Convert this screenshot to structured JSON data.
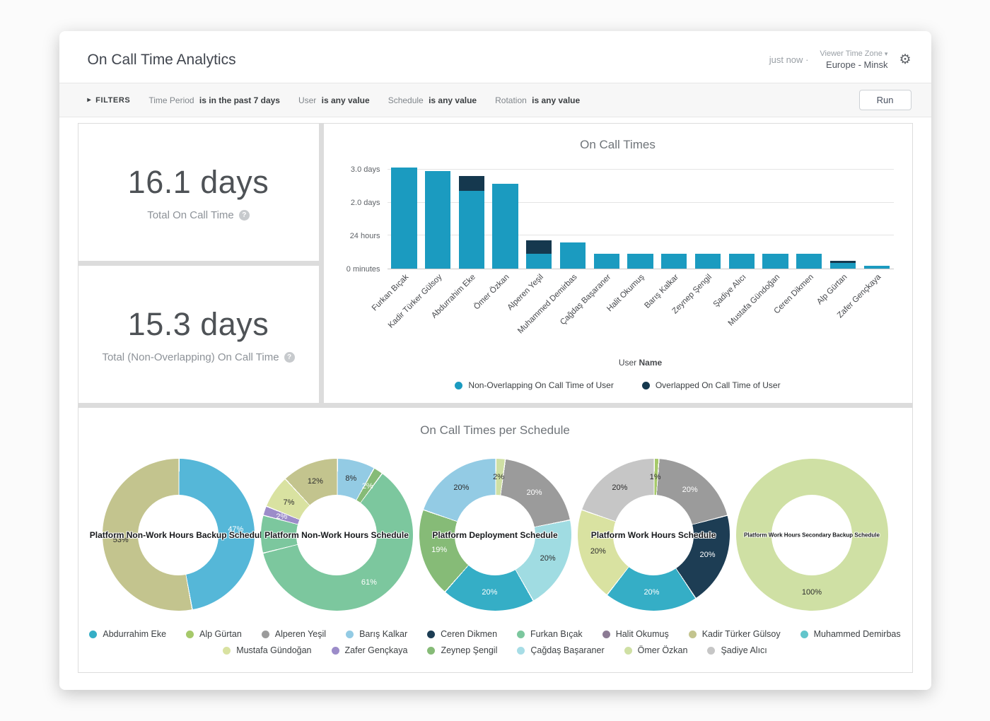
{
  "icons": {
    "gear": "⚙",
    "chevron_down": "▾",
    "info": "?",
    "filters_arrow": "▸"
  },
  "header": {
    "title": "On Call Time Analytics",
    "updated": "just now",
    "separator": "·",
    "timezone_label": "Viewer Time Zone",
    "timezone_value": "Europe - Minsk"
  },
  "filters": {
    "label": "FILTERS",
    "items": [
      {
        "field": "Time Period",
        "value": "is in the past 7 days"
      },
      {
        "field": "User",
        "value": "is any value"
      },
      {
        "field": "Schedule",
        "value": "is any value"
      },
      {
        "field": "Rotation",
        "value": "is any value"
      }
    ],
    "run_label": "Run"
  },
  "stats": [
    {
      "value": "16.1 days",
      "label": "Total On Call Time"
    },
    {
      "value": "15.3 days",
      "label": "Total (Non-Overlapping) On Call Time"
    }
  ],
  "chart_data": [
    {
      "type": "bar",
      "title": "On Call Times",
      "stacked": true,
      "xlabel": {
        "regular": "User",
        "bold": "Name"
      },
      "ymax_days": 3.2,
      "yticks": [
        {
          "label": "0 minutes",
          "value": 0
        },
        {
          "label": "24 hours",
          "value": 1
        },
        {
          "label": "2.0 days",
          "value": 2
        },
        {
          "label": "3.0 days",
          "value": 3
        }
      ],
      "categories": [
        "Furkan Bıçak",
        "Kadir Türker Gülsoy",
        "Abdurrahim Eke",
        "Ömer Özkan",
        "Alperen Yeşil",
        "Muhammed Demirbas",
        "Çağdaş Başaraner",
        "Halit Okumuş",
        "Barış Kalkar",
        "Zeynep Şengil",
        "Şadiye Alıcı",
        "Mustafa Gündoğan",
        "Ceren Dikmen",
        "Alp Gürtan",
        "Zafer Gençkaya"
      ],
      "series": [
        {
          "name": "Non-Overlapping On Call Time of User",
          "color": "#1b9bc0",
          "values": [
            3.05,
            2.95,
            2.35,
            2.55,
            0.45,
            0.8,
            0.45,
            0.45,
            0.45,
            0.45,
            0.45,
            0.45,
            0.45,
            0.18,
            0.08
          ]
        },
        {
          "name": "Overlapped On Call Time of User",
          "color": "#15384e",
          "values": [
            0,
            0,
            0.45,
            0,
            0.4,
            0,
            0,
            0,
            0,
            0,
            0,
            0,
            0,
            0.05,
            0
          ]
        }
      ],
      "legend_position": "bottom"
    },
    {
      "type": "donut-group",
      "title": "On Call Times per Schedule",
      "donuts": [
        {
          "title": "Platform Non-Work Hours Backup Schedule",
          "segments": [
            {
              "label": "47%",
              "value": 47,
              "color": "#55b7d8"
            },
            {
              "label": "53%",
              "value": 53,
              "color": "#c3c48e"
            }
          ]
        },
        {
          "title": "Platform Non-Work Hours Schedule",
          "segments": [
            {
              "label": "8%",
              "value": 8,
              "color": "#93cbe4"
            },
            {
              "label": "2%",
              "value": 2,
              "color": "#86bb77"
            },
            {
              "label": "61%",
              "value": 61,
              "color": "#7cc79e"
            },
            {
              "label": "",
              "value": 8,
              "color": "#7cc79e"
            },
            {
              "label": "2%",
              "value": 2,
              "color": "#9c8cc9"
            },
            {
              "label": "7%",
              "value": 7,
              "color": "#d9e2a1"
            },
            {
              "label": "12%",
              "value": 12,
              "color": "#c3c48e"
            }
          ]
        },
        {
          "title": "Platform Deployment Schedule",
          "segments": [
            {
              "label": "2%",
              "value": 2,
              "color": "#cfe0a4"
            },
            {
              "label": "20%",
              "value": 20,
              "color": "#9b9b9b"
            },
            {
              "label": "20%",
              "value": 20,
              "color": "#a0dce2"
            },
            {
              "label": "20%",
              "value": 20,
              "color": "#35aec6"
            },
            {
              "label": "19%",
              "value": 19,
              "color": "#86bb77"
            },
            {
              "label": "20%",
              "value": 20,
              "color": "#93cbe4"
            }
          ]
        },
        {
          "title": "Platform Work Hours Schedule",
          "segments": [
            {
              "label": "1%",
              "value": 1,
              "color": "#a6c96a"
            },
            {
              "label": "20%",
              "value": 20,
              "color": "#9b9b9b"
            },
            {
              "label": "20%",
              "value": 20,
              "color": "#1d3d54"
            },
            {
              "label": "20%",
              "value": 20,
              "color": "#35aec6"
            },
            {
              "label": "20%",
              "value": 20,
              "color": "#d9e2a1"
            },
            {
              "label": "20%",
              "value": 20,
              "color": "#c6c6c6"
            }
          ]
        },
        {
          "title": "Platform Work Hours Secondary Backup Schedule",
          "segments": [
            {
              "label": "100%",
              "value": 100,
              "color": "#cfe0a4"
            }
          ]
        }
      ]
    }
  ],
  "user_legend": {
    "rows": [
      [
        {
          "name": "Abdurrahim Eke",
          "color": "#35aec6"
        },
        {
          "name": "Alp Gürtan",
          "color": "#a6c96a"
        },
        {
          "name": "Alperen Yeşil",
          "color": "#9b9b9b"
        },
        {
          "name": "Barış Kalkar",
          "color": "#93cbe4"
        },
        {
          "name": "Ceren Dikmen",
          "color": "#1d3d54"
        },
        {
          "name": "Furkan Bıçak",
          "color": "#7cc79e"
        },
        {
          "name": "Halit Okumuş",
          "color": "#8c7b94"
        },
        {
          "name": "Kadir Türker Gülsoy",
          "color": "#c3c48e"
        },
        {
          "name": "Muhammed Demirbas",
          "color": "#62c5cb"
        }
      ],
      [
        {
          "name": "Mustafa Gündoğan",
          "color": "#d9e2a1"
        },
        {
          "name": "Zafer Gençkaya",
          "color": "#9c8cc9"
        },
        {
          "name": "Zeynep Şengil",
          "color": "#86bb77"
        },
        {
          "name": "Çağdaş Başaraner",
          "color": "#a7dde6"
        },
        {
          "name": "Ömer Özkan",
          "color": "#cfe0a4"
        },
        {
          "name": "Şadiye Alıcı",
          "color": "#c6c6c6"
        }
      ]
    ]
  }
}
